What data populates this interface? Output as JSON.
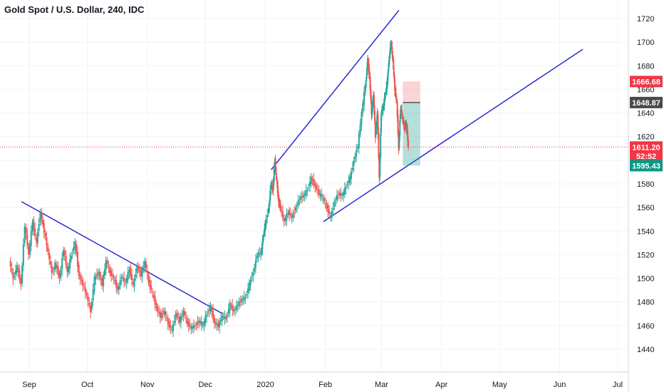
{
  "chart_data": {
    "type": "candlestick",
    "title": "Gold Spot / U.S. Dollar, 240, IDC",
    "xlabel": "",
    "ylabel": "",
    "ylim": [
      1430,
      1730
    ],
    "grid": true,
    "y_ticks": [
      1440,
      1460,
      1480,
      1500,
      1520,
      1540,
      1560,
      1580,
      1600,
      1620,
      1640,
      1660,
      1680,
      1700,
      1720
    ],
    "x_ticks": [
      "Sep",
      "Oct",
      "Nov",
      "Dec",
      "2020",
      "Feb",
      "Mar",
      "Apr",
      "May",
      "Jun",
      "Jul"
    ],
    "x_ticks_day": [
      0,
      30,
      61,
      91,
      122,
      153,
      182,
      213,
      243,
      274,
      304
    ],
    "price_tags": [
      {
        "label": "1666.68",
        "value": 1666.68,
        "color": "#f23645"
      },
      {
        "label": "1648.87",
        "value": 1648.87,
        "color": "#4a4a4a"
      },
      {
        "label": "1611.20",
        "value": 1611.2,
        "color": "#f23645"
      },
      {
        "label": "52:52",
        "value": 1603.5,
        "color": "#f23645"
      },
      {
        "label": "1595.43",
        "value": 1595.43,
        "color": "#089981"
      }
    ],
    "last_price": 1611.2,
    "price_path": [
      [
        -10,
        1515
      ],
      [
        -8,
        1500
      ],
      [
        -6,
        1510
      ],
      [
        -4,
        1495
      ],
      [
        -2,
        1545
      ],
      [
        0,
        1520
      ],
      [
        2,
        1548
      ],
      [
        4,
        1530
      ],
      [
        6,
        1556
      ],
      [
        8,
        1540
      ],
      [
        10,
        1522
      ],
      [
        12,
        1505
      ],
      [
        14,
        1512
      ],
      [
        16,
        1500
      ],
      [
        18,
        1525
      ],
      [
        20,
        1505
      ],
      [
        22,
        1520
      ],
      [
        24,
        1530
      ],
      [
        26,
        1502
      ],
      [
        28,
        1495
      ],
      [
        30,
        1485
      ],
      [
        32,
        1472
      ],
      [
        34,
        1500
      ],
      [
        36,
        1505
      ],
      [
        38,
        1495
      ],
      [
        40,
        1515
      ],
      [
        42,
        1505
      ],
      [
        44,
        1500
      ],
      [
        46,
        1490
      ],
      [
        48,
        1502
      ],
      [
        50,
        1496
      ],
      [
        52,
        1508
      ],
      [
        54,
        1494
      ],
      [
        56,
        1510
      ],
      [
        58,
        1503
      ],
      [
        60,
        1514
      ],
      [
        62,
        1497
      ],
      [
        64,
        1487
      ],
      [
        66,
        1475
      ],
      [
        68,
        1468
      ],
      [
        70,
        1472
      ],
      [
        72,
        1462
      ],
      [
        74,
        1456
      ],
      [
        76,
        1470
      ],
      [
        78,
        1464
      ],
      [
        80,
        1472
      ],
      [
        82,
        1462
      ],
      [
        84,
        1458
      ],
      [
        86,
        1460
      ],
      [
        88,
        1464
      ],
      [
        90,
        1460
      ],
      [
        92,
        1470
      ],
      [
        94,
        1476
      ],
      [
        96,
        1462
      ],
      [
        98,
        1460
      ],
      [
        100,
        1468
      ],
      [
        102,
        1466
      ],
      [
        104,
        1478
      ],
      [
        106,
        1472
      ],
      [
        108,
        1478
      ],
      [
        110,
        1482
      ],
      [
        112,
        1484
      ],
      [
        114,
        1495
      ],
      [
        116,
        1505
      ],
      [
        118,
        1520
      ],
      [
        120,
        1522
      ],
      [
        121,
        1535
      ],
      [
        122,
        1545
      ],
      [
        124,
        1560
      ],
      [
        125,
        1580
      ],
      [
        126,
        1575
      ],
      [
        127,
        1600
      ],
      [
        128,
        1582
      ],
      [
        129,
        1565
      ],
      [
        130,
        1560
      ],
      [
        132,
        1548
      ],
      [
        134,
        1556
      ],
      [
        136,
        1552
      ],
      [
        138,
        1560
      ],
      [
        140,
        1568
      ],
      [
        142,
        1570
      ],
      [
        144,
        1575
      ],
      [
        146,
        1585
      ],
      [
        148,
        1578
      ],
      [
        150,
        1572
      ],
      [
        152,
        1568
      ],
      [
        154,
        1560
      ],
      [
        156,
        1552
      ],
      [
        158,
        1565
      ],
      [
        160,
        1572
      ],
      [
        162,
        1570
      ],
      [
        164,
        1578
      ],
      [
        166,
        1585
      ],
      [
        168,
        1600
      ],
      [
        170,
        1612
      ],
      [
        172,
        1640
      ],
      [
        174,
        1665
      ],
      [
        175,
        1685
      ],
      [
        176,
        1670
      ],
      [
        177,
        1640
      ],
      [
        178,
        1655
      ],
      [
        179,
        1620
      ],
      [
        180,
        1640
      ],
      [
        181,
        1585
      ],
      [
        182,
        1640
      ],
      [
        183,
        1645
      ],
      [
        184,
        1655
      ],
      [
        185,
        1665
      ],
      [
        186,
        1685
      ],
      [
        187,
        1700
      ],
      [
        188,
        1685
      ],
      [
        189,
        1660
      ],
      [
        190,
        1650
      ],
      [
        191,
        1610
      ],
      [
        192,
        1645
      ],
      [
        193,
        1635
      ],
      [
        194,
        1628
      ],
      [
        195,
        1630
      ],
      [
        196,
        1611.2
      ]
    ],
    "trendlines": [
      {
        "name": "",
        "points": [
          [
            -4,
            1565
          ],
          [
            100,
            1470
          ]
        ],
        "color": "#2a2ad4"
      },
      {
        "name": "",
        "points": [
          [
            125,
            1592
          ],
          [
            191,
            1727
          ]
        ],
        "color": "#2a2ad4"
      },
      {
        "name": "",
        "points": [
          [
            152,
            1548
          ],
          [
            286,
            1694
          ]
        ],
        "color": "#2a2ad4"
      }
    ],
    "position_tool": {
      "x_range": [
        193,
        202
      ],
      "entry": 1648.87,
      "stop": 1666.68,
      "target": 1595.43
    }
  }
}
